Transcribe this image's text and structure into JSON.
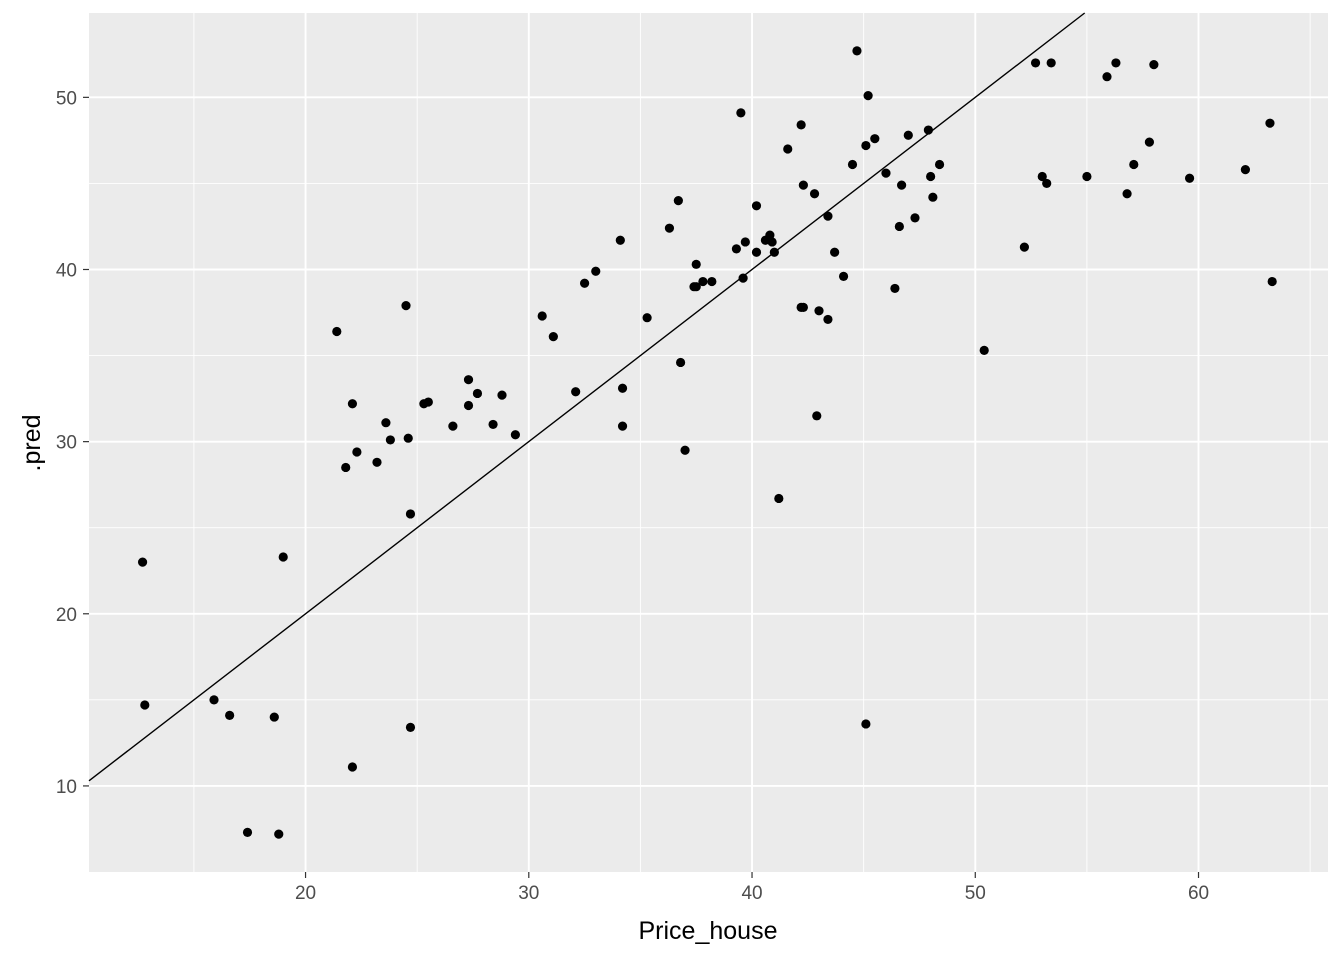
{
  "chart_data": {
    "type": "scatter",
    "title": "",
    "xlabel": "Price_house",
    "ylabel": ".pred",
    "xlim": [
      10.3,
      65.8
    ],
    "ylim": [
      5,
      54.9
    ],
    "x_ticks": [
      20,
      30,
      40,
      50,
      60
    ],
    "y_ticks": [
      10,
      20,
      30,
      40,
      50
    ],
    "x_tick_labels": [
      "20",
      "30",
      "40",
      "50",
      "60"
    ],
    "y_tick_labels": [
      "10",
      "20",
      "30",
      "40",
      "50"
    ],
    "grid": true,
    "reference_line": {
      "intercept": 0,
      "slope": 1
    },
    "colors": {
      "panel": "#ebebeb",
      "grid": "#ffffff",
      "point": "#000000",
      "line": "#000000"
    },
    "points": [
      [
        12.7,
        23.0
      ],
      [
        12.8,
        14.7
      ],
      [
        15.9,
        15.0
      ],
      [
        16.6,
        14.1
      ],
      [
        17.4,
        7.3
      ],
      [
        18.6,
        14.0
      ],
      [
        18.8,
        7.2
      ],
      [
        19.0,
        23.3
      ],
      [
        21.4,
        36.4
      ],
      [
        21.8,
        28.5
      ],
      [
        22.1,
        11.1
      ],
      [
        22.1,
        32.2
      ],
      [
        22.3,
        29.4
      ],
      [
        23.2,
        28.8
      ],
      [
        23.6,
        31.1
      ],
      [
        23.8,
        30.1
      ],
      [
        24.5,
        37.9
      ],
      [
        24.6,
        30.2
      ],
      [
        24.7,
        25.8
      ],
      [
        24.7,
        13.4
      ],
      [
        25.3,
        32.2
      ],
      [
        25.5,
        32.3
      ],
      [
        26.6,
        30.9
      ],
      [
        27.3,
        33.6
      ],
      [
        27.3,
        32.1
      ],
      [
        27.7,
        32.8
      ],
      [
        28.4,
        31.0
      ],
      [
        28.8,
        32.7
      ],
      [
        29.4,
        30.4
      ],
      [
        30.6,
        37.3
      ],
      [
        31.1,
        36.1
      ],
      [
        32.1,
        32.9
      ],
      [
        32.5,
        39.2
      ],
      [
        33.0,
        39.9
      ],
      [
        34.1,
        41.7
      ],
      [
        34.2,
        33.1
      ],
      [
        34.2,
        30.9
      ],
      [
        35.3,
        37.2
      ],
      [
        36.3,
        42.4
      ],
      [
        36.7,
        44.0
      ],
      [
        36.8,
        34.6
      ],
      [
        37.0,
        29.5
      ],
      [
        37.4,
        39.0
      ],
      [
        37.5,
        40.3
      ],
      [
        37.5,
        39.0
      ],
      [
        37.8,
        39.3
      ],
      [
        38.2,
        39.3
      ],
      [
        39.3,
        41.2
      ],
      [
        39.5,
        49.1
      ],
      [
        39.6,
        39.5
      ],
      [
        39.7,
        41.6
      ],
      [
        40.2,
        43.7
      ],
      [
        40.2,
        41.0
      ],
      [
        40.6,
        41.7
      ],
      [
        40.8,
        42.0
      ],
      [
        40.9,
        41.6
      ],
      [
        41.0,
        41.0
      ],
      [
        41.2,
        26.7
      ],
      [
        41.6,
        47.0
      ],
      [
        42.2,
        48.4
      ],
      [
        42.2,
        37.8
      ],
      [
        42.3,
        44.9
      ],
      [
        42.3,
        37.8
      ],
      [
        42.8,
        44.4
      ],
      [
        42.9,
        31.5
      ],
      [
        43.0,
        37.6
      ],
      [
        43.4,
        43.1
      ],
      [
        43.4,
        37.1
      ],
      [
        43.7,
        41.0
      ],
      [
        44.1,
        39.6
      ],
      [
        44.5,
        46.1
      ],
      [
        44.7,
        52.7
      ],
      [
        45.1,
        47.2
      ],
      [
        45.2,
        50.1
      ],
      [
        45.1,
        13.6
      ],
      [
        45.5,
        47.6
      ],
      [
        46.0,
        45.6
      ],
      [
        46.4,
        38.9
      ],
      [
        46.6,
        42.5
      ],
      [
        46.7,
        44.9
      ],
      [
        47.0,
        47.8
      ],
      [
        47.3,
        43.0
      ],
      [
        47.9,
        48.1
      ],
      [
        48.0,
        45.4
      ],
      [
        48.1,
        44.2
      ],
      [
        48.4,
        46.1
      ],
      [
        50.4,
        35.3
      ],
      [
        52.2,
        41.3
      ],
      [
        52.7,
        52.0
      ],
      [
        53.0,
        45.4
      ],
      [
        53.2,
        45.0
      ],
      [
        53.4,
        52.0
      ],
      [
        55.0,
        45.4
      ],
      [
        55.9,
        51.2
      ],
      [
        56.3,
        52.0
      ],
      [
        56.8,
        44.4
      ],
      [
        57.1,
        46.1
      ],
      [
        57.8,
        47.4
      ],
      [
        58.0,
        51.9
      ],
      [
        59.6,
        45.3
      ],
      [
        62.1,
        45.8
      ],
      [
        63.2,
        48.5
      ],
      [
        63.3,
        39.3
      ]
    ]
  }
}
